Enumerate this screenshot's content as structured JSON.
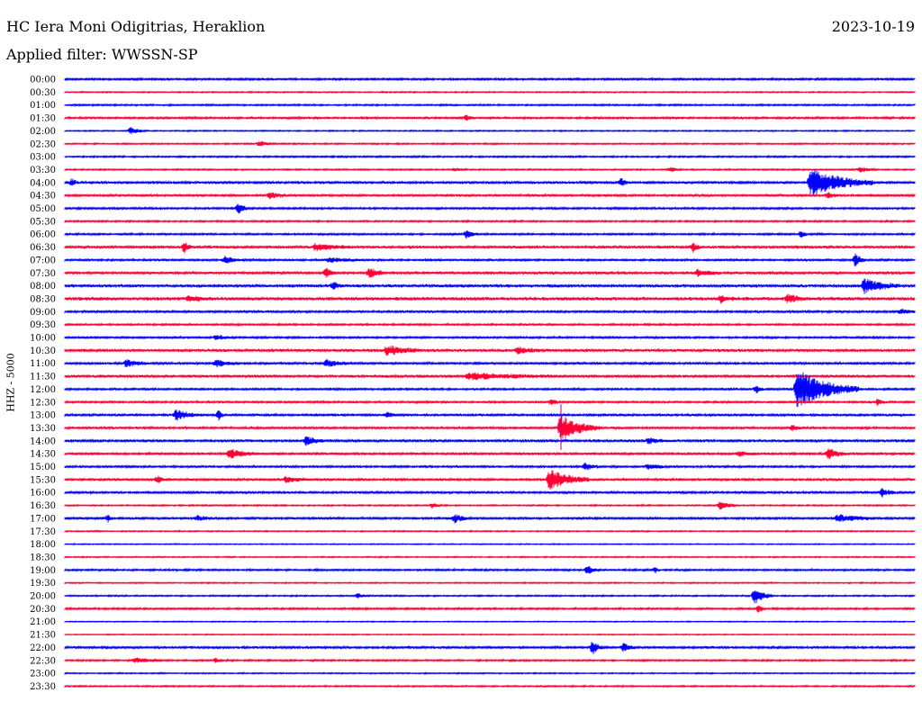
{
  "header": {
    "title": "HC Iera Moni Odigitrias, Heraklion",
    "filter": "Applied filter: WWSSN-SP",
    "date": "2023-10-19"
  },
  "colors": {
    "blue": "#0000ff",
    "red": "#ff0033",
    "purple": "#a000a0"
  },
  "chart_data": {
    "type": "line",
    "title": "HC Iera Moni Odigitrias, Heraklion",
    "ylabel": "HHZ - 5000",
    "row_labels": [
      "00:00",
      "00:30",
      "01:00",
      "01:30",
      "02:00",
      "02:30",
      "03:00",
      "03:30",
      "04:00",
      "04:30",
      "05:00",
      "05:30",
      "06:00",
      "06:30",
      "07:00",
      "07:30",
      "08:00",
      "08:30",
      "09:00",
      "09:30",
      "10:00",
      "10:30",
      "11:00",
      "11:30",
      "12:00",
      "12:30",
      "13:00",
      "13:30",
      "14:00",
      "14:30",
      "15:00",
      "15:30",
      "16:00",
      "16:30",
      "17:00",
      "17:30",
      "18:00",
      "18:30",
      "19:00",
      "19:30",
      "20:00",
      "20:30",
      "21:00",
      "21:30",
      "22:00",
      "22:30",
      "23:00",
      "23:30"
    ],
    "noise": [
      1.0,
      0.6,
      0.8,
      1.0,
      0.6,
      0.7,
      0.8,
      0.7,
      1.2,
      1.1,
      1.0,
      0.8,
      0.9,
      1.3,
      1.0,
      1.3,
      1.4,
      1.6,
      1.1,
      0.9,
      1.0,
      1.3,
      1.1,
      1.2,
      1.0,
      1.0,
      1.1,
      1.1,
      1.2,
      1.1,
      1.0,
      1.1,
      1.1,
      0.7,
      1.1,
      0.6,
      0.5,
      0.6,
      0.9,
      0.6,
      0.7,
      0.9,
      0.5,
      0.5,
      1.1,
      0.8,
      0.6,
      0.7
    ],
    "events": [
      {
        "row": 3,
        "x": 518,
        "amp": 3,
        "dur": 10
      },
      {
        "row": 4,
        "x": 145,
        "amp": 4,
        "dur": 18
      },
      {
        "row": 5,
        "x": 288,
        "amp": 3,
        "dur": 20
      },
      {
        "row": 7,
        "x": 505,
        "amp": 2,
        "dur": 12
      },
      {
        "row": 7,
        "x": 745,
        "amp": 3,
        "dur": 12
      },
      {
        "row": 7,
        "x": 955,
        "amp": 3,
        "dur": 20
      },
      {
        "row": 8,
        "x": 80,
        "amp": 4,
        "dur": 8
      },
      {
        "row": 8,
        "x": 690,
        "amp": 5,
        "dur": 8
      },
      {
        "row": 8,
        "x": 900,
        "amp": 16,
        "dur": 70
      },
      {
        "row": 9,
        "x": 300,
        "amp": 4,
        "dur": 18
      },
      {
        "row": 9,
        "x": 920,
        "amp": 4,
        "dur": 10
      },
      {
        "row": 10,
        "x": 265,
        "amp": 6,
        "dur": 12
      },
      {
        "row": 12,
        "x": 518,
        "amp": 5,
        "dur": 14
      },
      {
        "row": 12,
        "x": 890,
        "amp": 4,
        "dur": 8
      },
      {
        "row": 13,
        "x": 205,
        "amp": 7,
        "dur": 8
      },
      {
        "row": 13,
        "x": 350,
        "amp": 4,
        "dur": 40
      },
      {
        "row": 13,
        "x": 770,
        "amp": 5,
        "dur": 10
      },
      {
        "row": 14,
        "x": 250,
        "amp": 4,
        "dur": 22
      },
      {
        "row": 14,
        "x": 365,
        "amp": 3,
        "dur": 40
      },
      {
        "row": 14,
        "x": 950,
        "amp": 7,
        "dur": 12
      },
      {
        "row": 15,
        "x": 362,
        "amp": 5,
        "dur": 12
      },
      {
        "row": 15,
        "x": 410,
        "amp": 6,
        "dur": 20
      },
      {
        "row": 15,
        "x": 775,
        "amp": 4,
        "dur": 25
      },
      {
        "row": 16,
        "x": 370,
        "amp": 5,
        "dur": 12
      },
      {
        "row": 16,
        "x": 960,
        "amp": 8,
        "dur": 40
      },
      {
        "row": 17,
        "x": 210,
        "amp": 3,
        "dur": 30
      },
      {
        "row": 17,
        "x": 800,
        "amp": 4,
        "dur": 15
      },
      {
        "row": 17,
        "x": 875,
        "amp": 5,
        "dur": 20
      },
      {
        "row": 18,
        "x": 1000,
        "amp": 3,
        "dur": 20
      },
      {
        "row": 20,
        "x": 240,
        "amp": 3,
        "dur": 20
      },
      {
        "row": 21,
        "x": 430,
        "amp": 6,
        "dur": 40
      },
      {
        "row": 21,
        "x": 575,
        "amp": 4,
        "dur": 25
      },
      {
        "row": 22,
        "x": 140,
        "amp": 4,
        "dur": 25
      },
      {
        "row": 22,
        "x": 240,
        "amp": 4,
        "dur": 25
      },
      {
        "row": 22,
        "x": 362,
        "amp": 4,
        "dur": 30
      },
      {
        "row": 23,
        "x": 520,
        "amp": 4,
        "dur": 100
      },
      {
        "row": 24,
        "x": 885,
        "amp": 22,
        "dur": 70
      },
      {
        "row": 24,
        "x": 840,
        "amp": 4,
        "dur": 10
      },
      {
        "row": 25,
        "x": 612,
        "amp": 3,
        "dur": 12
      },
      {
        "row": 25,
        "x": 975,
        "amp": 4,
        "dur": 8
      },
      {
        "row": 26,
        "x": 195,
        "amp": 6,
        "dur": 30
      },
      {
        "row": 26,
        "x": 243,
        "amp": 6,
        "dur": 6
      },
      {
        "row": 26,
        "x": 430,
        "amp": 3,
        "dur": 10
      },
      {
        "row": 27,
        "x": 622,
        "amp": 14,
        "dur": 45
      },
      {
        "row": 27,
        "x": 880,
        "amp": 3,
        "dur": 15
      },
      {
        "row": 28,
        "x": 340,
        "amp": 5,
        "dur": 20
      },
      {
        "row": 28,
        "x": 720,
        "amp": 3,
        "dur": 25
      },
      {
        "row": 29,
        "x": 255,
        "amp": 5,
        "dur": 35
      },
      {
        "row": 29,
        "x": 920,
        "amp": 7,
        "dur": 20
      },
      {
        "row": 29,
        "x": 820,
        "amp": 3,
        "dur": 20
      },
      {
        "row": 30,
        "x": 650,
        "amp": 4,
        "dur": 15
      },
      {
        "row": 30,
        "x": 720,
        "amp": 3,
        "dur": 30
      },
      {
        "row": 31,
        "x": 610,
        "amp": 12,
        "dur": 45
      },
      {
        "row": 31,
        "x": 175,
        "amp": 4,
        "dur": 10
      },
      {
        "row": 31,
        "x": 318,
        "amp": 4,
        "dur": 25
      },
      {
        "row": 32,
        "x": 980,
        "amp": 5,
        "dur": 15
      },
      {
        "row": 33,
        "x": 800,
        "amp": 5,
        "dur": 18
      },
      {
        "row": 33,
        "x": 480,
        "amp": 3,
        "dur": 12
      },
      {
        "row": 34,
        "x": 505,
        "amp": 5,
        "dur": 16
      },
      {
        "row": 34,
        "x": 120,
        "amp": 4,
        "dur": 6
      },
      {
        "row": 34,
        "x": 220,
        "amp": 3,
        "dur": 15
      },
      {
        "row": 34,
        "x": 930,
        "amp": 4,
        "dur": 50
      },
      {
        "row": 38,
        "x": 652,
        "amp": 5,
        "dur": 14
      },
      {
        "row": 38,
        "x": 728,
        "amp": 3,
        "dur": 5
      },
      {
        "row": 40,
        "x": 838,
        "amp": 10,
        "dur": 20
      },
      {
        "row": 40,
        "x": 398,
        "amp": 3,
        "dur": 8
      },
      {
        "row": 41,
        "x": 843,
        "amp": 5,
        "dur": 6
      },
      {
        "row": 44,
        "x": 658,
        "amp": 8,
        "dur": 12
      },
      {
        "row": 44,
        "x": 693,
        "amp": 5,
        "dur": 14
      },
      {
        "row": 45,
        "x": 150,
        "amp": 3,
        "dur": 30
      },
      {
        "row": 45,
        "x": 240,
        "amp": 3,
        "dur": 6
      }
    ],
    "spike": {
      "row": 26,
      "x": 623,
      "to_row": 28.7
    }
  }
}
